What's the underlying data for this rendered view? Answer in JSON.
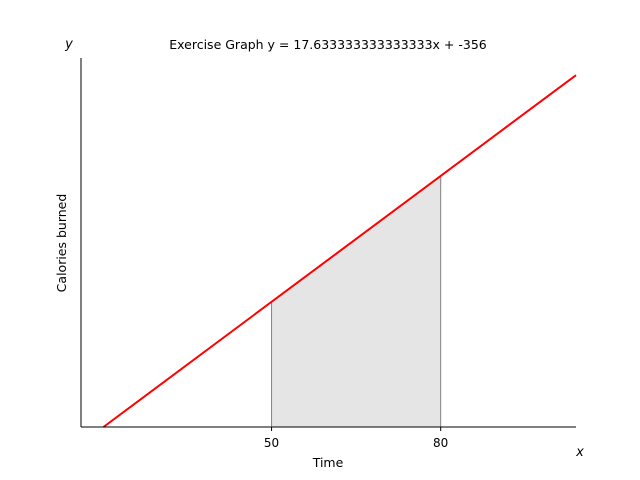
{
  "chart_data": {
    "type": "line",
    "title": "Exercise Graph y = 17.633333333333333x + -356",
    "xlabel": "Time",
    "ylabel": "Calories burned",
    "x_corner_label": "x",
    "y_corner_label": "y",
    "line": {
      "slope": 17.633333333333333,
      "intercept": -356,
      "color": "#ff0000"
    },
    "series": [
      {
        "x": [
          20.19,
          104
        ],
        "y": [
          0,
          1477.9
        ]
      }
    ],
    "shaded_region": {
      "x_start": 50,
      "x_end": 80,
      "fill": "#e5e5e5",
      "edge": "#808080"
    },
    "xticks": [
      50,
      80
    ],
    "xlim": [
      16.2,
      104
    ],
    "ylim": [
      0,
      1550
    ],
    "grid": false
  }
}
